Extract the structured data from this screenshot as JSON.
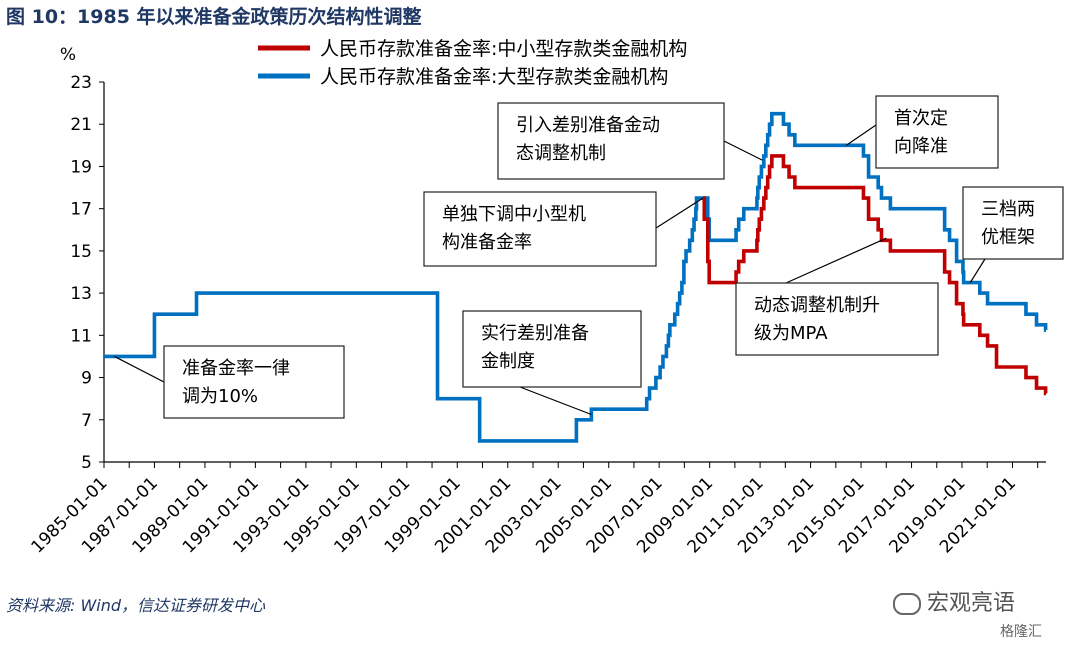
{
  "figure_title": "图 10：1985 年以来准备金政策历次结构性调整",
  "source_note": "资料来源: Wind，信达证券研发中心",
  "watermark_primary": "宏观亮语",
  "watermark_secondary": "格隆汇",
  "colors": {
    "series_small": "#c00000",
    "series_large": "#0070c0",
    "title": "#1f3864"
  },
  "chart_data": {
    "type": "line",
    "ylabel": "%",
    "ylim": [
      5,
      23
    ],
    "yticks": [
      5,
      7,
      9,
      11,
      13,
      15,
      17,
      19,
      21,
      23
    ],
    "xlim": [
      "1985-01-01",
      "2022-05-01"
    ],
    "xticks": [
      "1985-01-01",
      "1987-01-01",
      "1989-01-01",
      "1991-01-01",
      "1993-01-01",
      "1995-01-01",
      "1997-01-01",
      "1999-01-01",
      "2001-01-01",
      "2003-01-01",
      "2005-01-01",
      "2007-01-01",
      "2009-01-01",
      "2011-01-01",
      "2013-01-01",
      "2015-01-01",
      "2017-01-01",
      "2019-01-01",
      "2021-01-01"
    ],
    "grid": false,
    "legend_position": "top",
    "series": [
      {
        "name": "人民币存款准备金率:中小型存款类金融机构",
        "color": "#c00000",
        "points": [
          [
            "2008-09-25",
            17.5
          ],
          [
            "2008-10-15",
            16.5
          ],
          [
            "2008-12-05",
            14.5
          ],
          [
            "2008-12-25",
            13.5
          ],
          [
            "2010-01-18",
            14.0
          ],
          [
            "2010-02-25",
            14.5
          ],
          [
            "2010-05-10",
            15.0
          ],
          [
            "2010-11-16",
            15.5
          ],
          [
            "2010-11-29",
            16.0
          ],
          [
            "2010-12-20",
            16.5
          ],
          [
            "2011-01-20",
            17.0
          ],
          [
            "2011-02-24",
            17.5
          ],
          [
            "2011-03-25",
            18.0
          ],
          [
            "2011-04-21",
            18.5
          ],
          [
            "2011-05-18",
            19.0
          ],
          [
            "2011-06-20",
            19.5
          ],
          [
            "2011-12-05",
            19.0
          ],
          [
            "2012-02-24",
            18.5
          ],
          [
            "2012-05-18",
            18.0
          ],
          [
            "2015-02-05",
            17.5
          ],
          [
            "2015-04-20",
            16.5
          ],
          [
            "2015-09-06",
            16.0
          ],
          [
            "2015-10-24",
            15.5
          ],
          [
            "2016-03-01",
            15.0
          ],
          [
            "2018-04-25",
            14.0
          ],
          [
            "2018-07-05",
            13.5
          ],
          [
            "2018-10-15",
            12.5
          ],
          [
            "2019-01-15",
            12.0
          ],
          [
            "2019-01-25",
            11.5
          ],
          [
            "2019-09-16",
            11.0
          ],
          [
            "2020-01-06",
            10.5
          ],
          [
            "2020-05-15",
            9.5
          ],
          [
            "2021-07-15",
            9.0
          ],
          [
            "2021-12-15",
            8.5
          ],
          [
            "2022-04-25",
            8.25
          ],
          [
            "2022-05-01",
            8.25
          ]
        ]
      },
      {
        "name": "人民币存款准备金率:大型存款类金融机构",
        "color": "#0070c0",
        "points": [
          [
            "1985-01-01",
            10.0
          ],
          [
            "1987-01-01",
            12.0
          ],
          [
            "1988-09-01",
            13.0
          ],
          [
            "1998-03-21",
            8.0
          ],
          [
            "1999-11-21",
            6.0
          ],
          [
            "2003-09-21",
            7.0
          ],
          [
            "2004-04-25",
            7.5
          ],
          [
            "2006-07-05",
            8.0
          ],
          [
            "2006-08-15",
            8.5
          ],
          [
            "2006-11-15",
            9.0
          ],
          [
            "2007-01-15",
            9.5
          ],
          [
            "2007-02-25",
            10.0
          ],
          [
            "2007-04-16",
            10.5
          ],
          [
            "2007-05-15",
            11.0
          ],
          [
            "2007-06-05",
            11.5
          ],
          [
            "2007-08-15",
            12.0
          ],
          [
            "2007-09-25",
            12.5
          ],
          [
            "2007-10-25",
            13.0
          ],
          [
            "2007-11-26",
            13.5
          ],
          [
            "2007-12-25",
            14.5
          ],
          [
            "2008-01-25",
            15.0
          ],
          [
            "2008-03-18",
            15.5
          ],
          [
            "2008-04-25",
            16.0
          ],
          [
            "2008-05-20",
            16.5
          ],
          [
            "2008-06-15",
            17.0
          ],
          [
            "2008-06-25",
            17.5
          ],
          [
            "2008-12-05",
            16.5
          ],
          [
            "2008-12-25",
            15.5
          ],
          [
            "2010-01-18",
            16.0
          ],
          [
            "2010-02-25",
            16.5
          ],
          [
            "2010-05-10",
            17.0
          ],
          [
            "2010-11-16",
            17.5
          ],
          [
            "2010-11-29",
            18.0
          ],
          [
            "2010-12-20",
            18.5
          ],
          [
            "2011-01-20",
            19.0
          ],
          [
            "2011-02-24",
            19.5
          ],
          [
            "2011-03-25",
            20.0
          ],
          [
            "2011-04-21",
            20.5
          ],
          [
            "2011-05-18",
            21.0
          ],
          [
            "2011-06-20",
            21.5
          ],
          [
            "2011-12-05",
            21.0
          ],
          [
            "2012-02-24",
            20.5
          ],
          [
            "2012-05-18",
            20.0
          ],
          [
            "2015-02-05",
            19.5
          ],
          [
            "2015-04-20",
            18.5
          ],
          [
            "2015-09-06",
            18.0
          ],
          [
            "2015-10-24",
            17.5
          ],
          [
            "2016-03-01",
            17.0
          ],
          [
            "2018-04-25",
            16.0
          ],
          [
            "2018-07-05",
            15.5
          ],
          [
            "2018-10-15",
            14.5
          ],
          [
            "2019-01-15",
            14.0
          ],
          [
            "2019-01-25",
            13.5
          ],
          [
            "2019-09-16",
            13.0
          ],
          [
            "2020-01-06",
            12.5
          ],
          [
            "2021-07-15",
            12.0
          ],
          [
            "2021-12-15",
            11.5
          ],
          [
            "2022-04-25",
            11.25
          ],
          [
            "2022-05-01",
            11.25
          ]
        ]
      }
    ],
    "annotations": [
      {
        "lines": [
          "准备金率一律",
          "调为10%"
        ],
        "target": [
          "1985-06-01",
          10.0
        ]
      },
      {
        "lines": [
          "实行差别准备",
          "金制度"
        ],
        "target": [
          "2004-04-25",
          7.25
        ]
      },
      {
        "lines": [
          "单独下调中小型机",
          "构准备金率"
        ],
        "target": [
          "2008-09-25",
          17.5
        ]
      },
      {
        "lines": [
          "引入差别准备金动",
          "态调整机制"
        ],
        "target": [
          "2011-02-01",
          19.3
        ]
      },
      {
        "lines": [
          "动态调整机制升",
          "级为MPA"
        ],
        "target": [
          "2016-01-01",
          15.6
        ]
      },
      {
        "lines": [
          "首次定",
          "向降准"
        ],
        "target": [
          "2014-06-01",
          20.0
        ]
      },
      {
        "lines": [
          "三档两",
          "优框架"
        ],
        "target": [
          "2019-05-01",
          13.5
        ]
      }
    ]
  }
}
